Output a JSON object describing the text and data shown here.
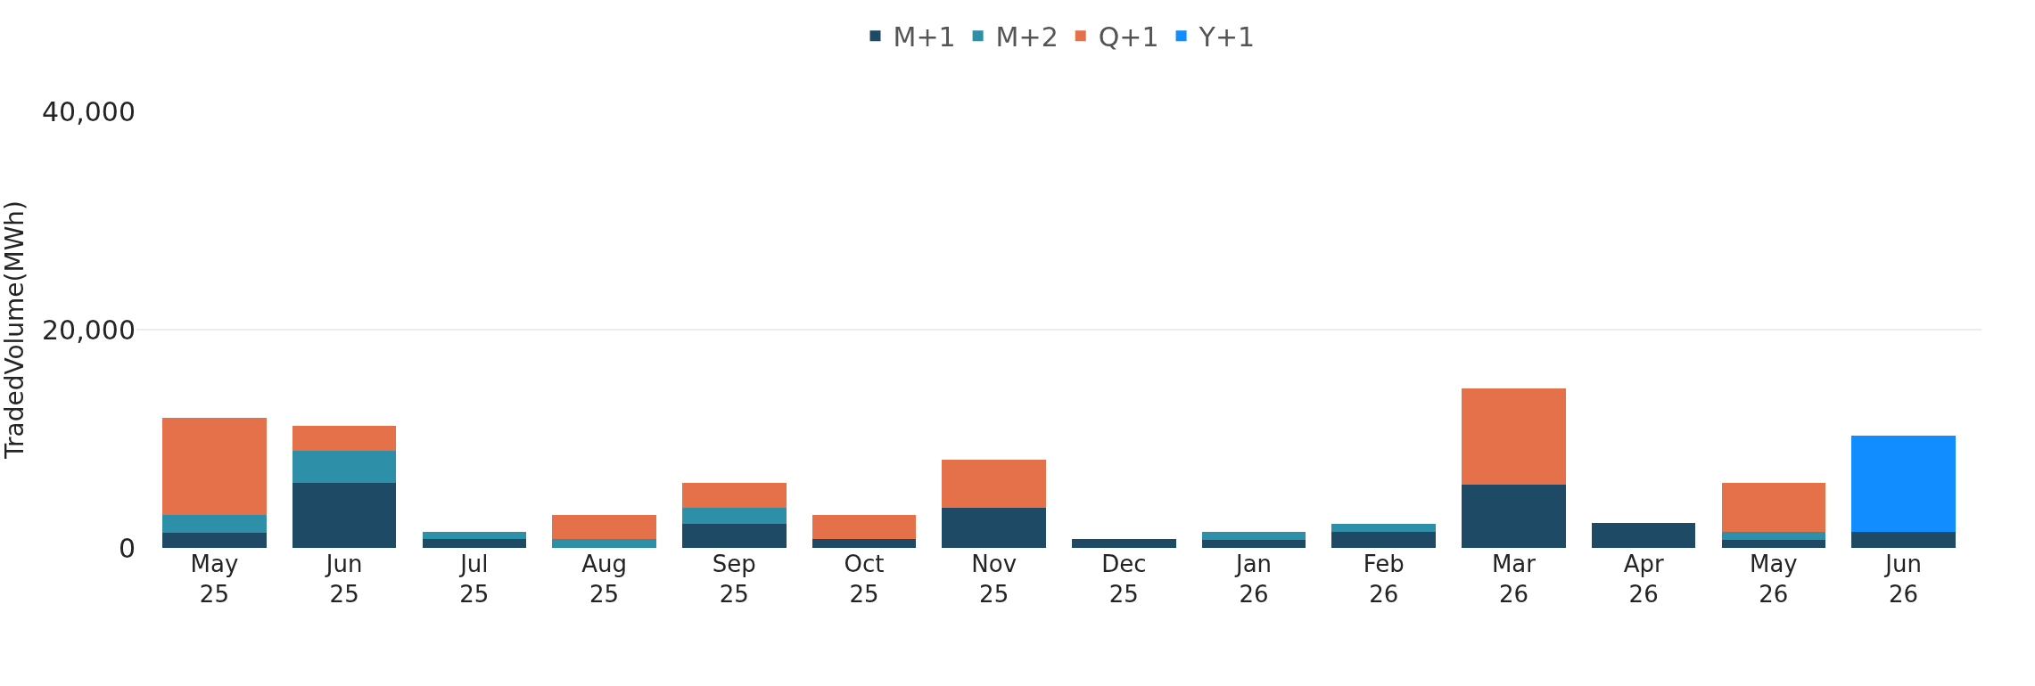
{
  "chart_data": {
    "type": "bar",
    "stacked": true,
    "ylabel": "TradedVolume(MWh)",
    "categories": [
      "May 25",
      "Jun 25",
      "Jul 25",
      "Aug 25",
      "Sep 25",
      "Oct 25",
      "Nov 25",
      "Dec 25",
      "Jan 26",
      "Feb 26",
      "Mar 26",
      "Apr 26",
      "May 26",
      "Jun 26"
    ],
    "series": [
      {
        "name": "M+1",
        "color": "#1f4a66",
        "values": [
          1400,
          6000,
          800,
          null,
          2200,
          800,
          3700,
          800,
          700,
          1500,
          5800,
          2300,
          700,
          1500
        ]
      },
      {
        "name": "M+2",
        "color": "#2e8fa8",
        "values": [
          1600,
          2900,
          700,
          800,
          1500,
          null,
          null,
          null,
          800,
          700,
          null,
          null,
          800,
          null
        ]
      },
      {
        "name": "Q+1",
        "color": "#e5714b",
        "values": [
          8900,
          2300,
          null,
          2200,
          2300,
          2200,
          4400,
          null,
          null,
          null,
          8800,
          null,
          4500,
          null
        ]
      },
      {
        "name": "Y+1",
        "color": "#118dff",
        "values": [
          null,
          null,
          null,
          null,
          null,
          null,
          null,
          null,
          null,
          null,
          null,
          null,
          null,
          8800
        ]
      }
    ],
    "ylim": [
      0,
      40000
    ],
    "yticks": [
      {
        "value": 0,
        "label": "0"
      },
      {
        "value": 20000,
        "label": "20,000"
      },
      {
        "value": 40000,
        "label": "40,000"
      }
    ],
    "grid": "y",
    "legend": "top"
  }
}
